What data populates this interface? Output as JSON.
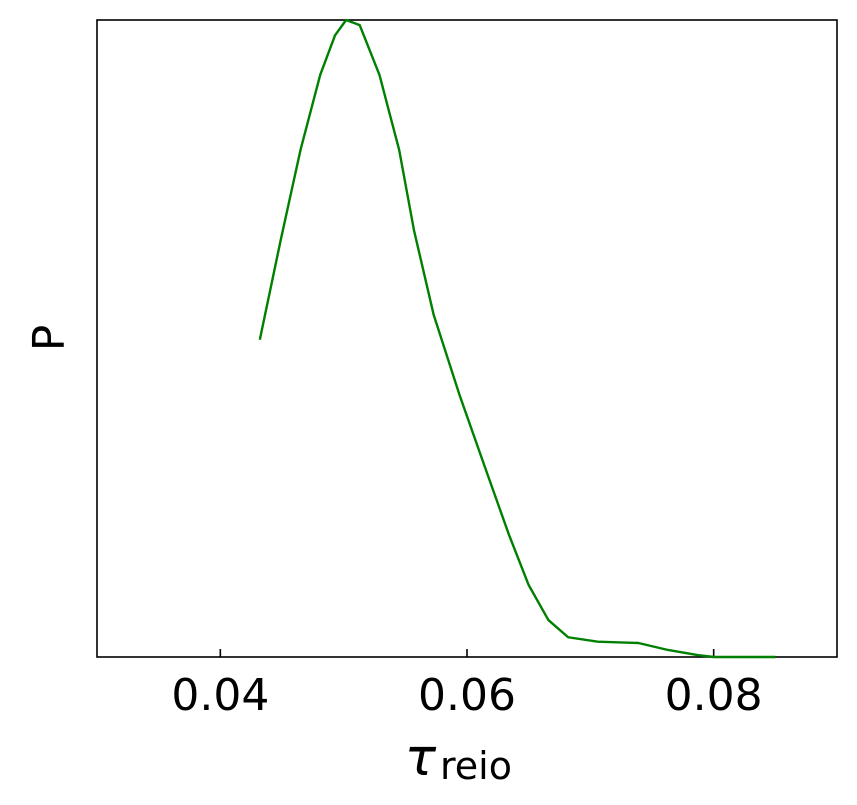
{
  "chart_data": {
    "type": "line",
    "ylabel": "P",
    "xlabel": {
      "symbol": "τ",
      "subscript": "reio"
    },
    "x": [
      0.0432,
      0.0449,
      0.0465,
      0.0481,
      0.0493,
      0.0502,
      0.0513,
      0.0529,
      0.0545,
      0.0557,
      0.0573,
      0.0594,
      0.0614,
      0.0634,
      0.065,
      0.0666,
      0.0682,
      0.0706,
      0.0739,
      0.0763,
      0.0787,
      0.08,
      0.085
    ],
    "values": [
      0.498,
      0.655,
      0.796,
      0.914,
      0.976,
      1.0,
      0.992,
      0.914,
      0.796,
      0.67,
      0.537,
      0.411,
      0.301,
      0.192,
      0.113,
      0.058,
      0.031,
      0.024,
      0.022,
      0.011,
      0.003,
      0.0,
      0.0
    ],
    "color": "#008000",
    "xlim": [
      0.03,
      0.09
    ],
    "ylim": [
      0,
      1
    ],
    "xticks": [
      0.04,
      0.06,
      0.08
    ]
  }
}
